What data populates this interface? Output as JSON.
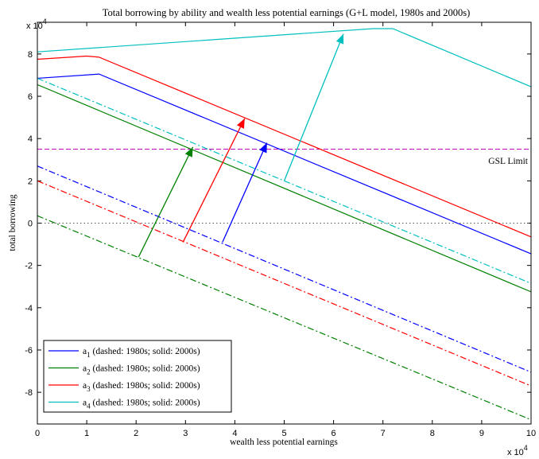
{
  "chart_data": {
    "type": "line",
    "title": "Total borrowing by ability and wealth less potential earnings (G+L model, 1980s and 2000s)",
    "xlabel": "wealth less potential earnings",
    "ylabel": "total borrowing",
    "x_exponent_label": "x 10",
    "x_exponent_power": "4",
    "y_exponent_label": "x 10",
    "y_exponent_power": "4",
    "xlim": [
      0,
      100000
    ],
    "ylim": [
      -95000,
      95000
    ],
    "x_scale": 10000,
    "y_scale": 10000,
    "xticks": [
      0,
      1,
      2,
      3,
      4,
      5,
      6,
      7,
      8,
      9,
      10
    ],
    "yticks": [
      -8,
      -6,
      -4,
      -2,
      0,
      2,
      4,
      6,
      8
    ],
    "grid": false,
    "legend_position": "bottom-left",
    "colors": {
      "a1": "#0000ff",
      "a2": "#008000",
      "a3": "#ff0000",
      "a4": "#00bfbf",
      "gsl": "#bf00bf",
      "zero": "#555555"
    },
    "series": [
      {
        "key": "a1",
        "period": "2000s",
        "style": "solid",
        "points": [
          [
            0,
            68500
          ],
          [
            12500,
            70500
          ],
          [
            100000,
            -14500
          ]
        ]
      },
      {
        "key": "a2",
        "period": "2000s",
        "style": "solid",
        "points": [
          [
            0,
            65500
          ],
          [
            100000,
            -32500
          ]
        ]
      },
      {
        "key": "a3",
        "period": "2000s",
        "style": "solid",
        "points": [
          [
            0,
            77500
          ],
          [
            10000,
            79000
          ],
          [
            12500,
            78500
          ],
          [
            100000,
            -6500
          ]
        ]
      },
      {
        "key": "a4",
        "period": "2000s",
        "style": "solid",
        "points": [
          [
            0,
            81000
          ],
          [
            68000,
            92000
          ],
          [
            72000,
            92000
          ],
          [
            100000,
            64500
          ]
        ]
      },
      {
        "key": "a1",
        "period": "1980s",
        "style": "dashdot",
        "points": [
          [
            0,
            27000
          ],
          [
            100000,
            -70500
          ]
        ]
      },
      {
        "key": "a2",
        "period": "1980s",
        "style": "dashdot",
        "points": [
          [
            0,
            3500
          ],
          [
            100000,
            -93000
          ]
        ]
      },
      {
        "key": "a3",
        "period": "1980s",
        "style": "dashdot",
        "points": [
          [
            0,
            20000
          ],
          [
            100000,
            -77000
          ]
        ]
      },
      {
        "key": "a4",
        "period": "1980s",
        "style": "dashdot",
        "points": [
          [
            0,
            68500
          ],
          [
            100000,
            -28500
          ]
        ]
      }
    ],
    "reference_lines": [
      {
        "key": "gsl",
        "y": 35000,
        "style": "dashed",
        "label": "GSL Limit"
      },
      {
        "key": "zero",
        "y": 0,
        "style": "dotted"
      }
    ],
    "arrows": [
      {
        "key": "a2",
        "from": [
          20500,
          -16000
        ],
        "to": [
          31500,
          36000
        ]
      },
      {
        "key": "a3",
        "from": [
          29500,
          -9000
        ],
        "to": [
          42000,
          49500
        ]
      },
      {
        "key": "a1",
        "from": [
          37500,
          -9000
        ],
        "to": [
          46500,
          38000
        ]
      },
      {
        "key": "a4",
        "from": [
          50000,
          20000
        ],
        "to": [
          62000,
          89500
        ]
      }
    ],
    "legend": [
      {
        "key": "a1",
        "sym": "a",
        "sub": "1",
        "text": " (dashed: 1980s; solid: 2000s)"
      },
      {
        "key": "a2",
        "sym": "a",
        "sub": "2",
        "text": " (dashed: 1980s; solid: 2000s)"
      },
      {
        "key": "a3",
        "sym": "a",
        "sub": "3",
        "text": " (dashed: 1980s; solid: 2000s)"
      },
      {
        "key": "a4",
        "sym": "a",
        "sub": "4",
        "text": " (dashed: 1980s; solid: 2000s)"
      }
    ]
  }
}
